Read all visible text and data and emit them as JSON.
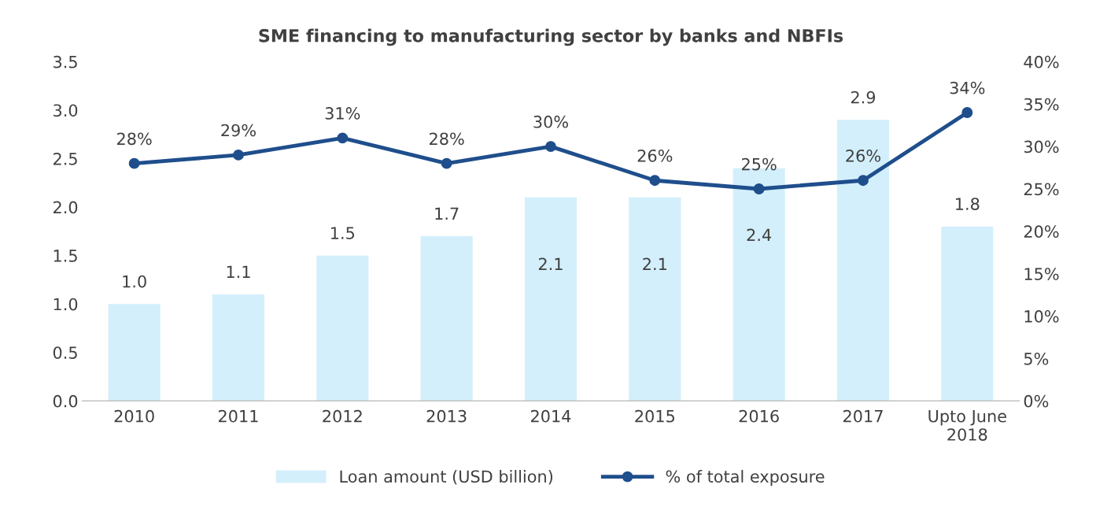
{
  "chart_data": {
    "type": "bar",
    "title": "SME financing to manufacturing sector by banks and NBFIs",
    "categories": [
      "2010",
      "2011",
      "2012",
      "2013",
      "2014",
      "2015",
      "2016",
      "2017",
      "Upto June\n2018"
    ],
    "series": [
      {
        "name": "Loan amount (USD billion)",
        "color": "#d3effb",
        "value_labels": [
          "1.0",
          "1.1",
          "1.5",
          "1.7",
          "2.1",
          "2.1",
          "2.4",
          "2.9",
          "1.8"
        ],
        "values": [
          1.0,
          1.1,
          1.5,
          1.7,
          2.1,
          2.1,
          2.4,
          2.9,
          1.8
        ]
      },
      {
        "name": "% of total exposure",
        "type": "line",
        "axis": "y2",
        "color": "#1f4e8c",
        "marker": "circle",
        "value_labels": [
          "28%",
          "29%",
          "31%",
          "28%",
          "30%",
          "26%",
          "25%",
          "26%",
          "34%"
        ],
        "values": [
          28,
          29,
          31,
          28,
          30,
          26,
          25,
          26,
          34
        ]
      }
    ],
    "ylim": [
      0,
      3.5
    ],
    "yticks": [
      {
        "value": 0,
        "label": "0.0"
      },
      {
        "value": 0.5,
        "label": "0.5"
      },
      {
        "value": 1,
        "label": "1.0"
      },
      {
        "value": 1.5,
        "label": "1.5"
      },
      {
        "value": 2,
        "label": "2.0"
      },
      {
        "value": 2.5,
        "label": "2.5"
      },
      {
        "value": 3,
        "label": "3.0"
      },
      {
        "value": 3.5,
        "label": "3.5"
      }
    ],
    "y2lim": [
      0,
      40
    ],
    "y2ticks": [
      {
        "value": 0,
        "label": "0%"
      },
      {
        "value": 5,
        "label": "5%"
      },
      {
        "value": 10,
        "label": "10%"
      },
      {
        "value": 15,
        "label": "15%"
      },
      {
        "value": 20,
        "label": "20%"
      },
      {
        "value": 25,
        "label": "25%"
      },
      {
        "value": 30,
        "label": "30%"
      },
      {
        "value": 35,
        "label": "35%"
      },
      {
        "value": 40,
        "label": "40%"
      }
    ],
    "grid": false,
    "legend": "bottom"
  }
}
